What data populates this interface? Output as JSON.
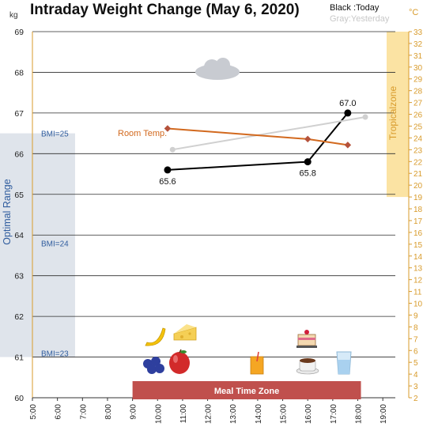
{
  "header": {
    "title": "Intraday Weight Change (May 6, 2020)",
    "legend_today": "Black :Today",
    "legend_yesterday": "Gray:Yesterday",
    "left_unit": "kg",
    "right_unit": "°C"
  },
  "chart_data": {
    "type": "line",
    "title": "Intraday Weight Change (May 6, 2020)",
    "x_ticks": [
      "5:00",
      "6:00",
      "7:00",
      "8:00",
      "9:00",
      "10:00",
      "11:00",
      "12:00",
      "13:00",
      "14:00",
      "15:00",
      "16:00",
      "17:00",
      "18:00",
      "19:00"
    ],
    "xlim": [
      5,
      19.5
    ],
    "y_left": {
      "unit": "kg",
      "ylim": [
        60,
        69
      ],
      "ticks": [
        60,
        61,
        62,
        63,
        64,
        65,
        66,
        67,
        68,
        69
      ]
    },
    "y_right": {
      "unit": "°C",
      "ylim": [
        2,
        33
      ],
      "ticks": [
        2,
        3,
        4,
        5,
        6,
        7,
        8,
        9,
        10,
        11,
        12,
        13,
        14,
        15,
        16,
        17,
        18,
        19,
        20,
        21,
        22,
        23,
        24,
        25,
        26,
        27,
        28,
        29,
        30,
        31,
        32,
        33
      ]
    },
    "series": [
      {
        "name": "Today",
        "axis": "left",
        "color": "#000000",
        "x": [
          10.4,
          16.0,
          17.6
        ],
        "y": [
          65.6,
          65.8,
          67.0
        ],
        "labels": [
          "65.6",
          "65.8",
          "67.0"
        ]
      },
      {
        "name": "Yesterday",
        "axis": "left",
        "color": "#d0d0d0",
        "x": [
          10.6,
          18.3
        ],
        "y": [
          66.1,
          66.9
        ]
      },
      {
        "name": "Room Temp.",
        "axis": "right",
        "color": "#d2691e",
        "x": [
          10.4,
          16.0,
          17.6
        ],
        "y": [
          24.8,
          23.9,
          23.4
        ]
      }
    ],
    "bands": {
      "optimal_range": {
        "label": "Optimal Range",
        "ylim": [
          61,
          66.5
        ],
        "color": "#dfe4eb"
      },
      "tropical_zone": {
        "label": "Tropicalzone",
        "ylim_right": [
          19,
          33
        ],
        "color": "#fbe3a3"
      },
      "meal_time_zone": {
        "label": "Meal Time Zone",
        "xlim": [
          9,
          18
        ],
        "color": "#c0504d"
      }
    },
    "annotations": {
      "room_temp_label": "Room Temp.",
      "bmi_lines": [
        {
          "label": "BMI=25",
          "y": 66.5
        },
        {
          "label": "BMI=24",
          "y": 63.8
        },
        {
          "label": "BMI=23",
          "y": 61.1
        }
      ]
    },
    "icons": [
      "cloud-icon",
      "banana-icon",
      "cheese-icon",
      "blueberries-icon",
      "apple-icon",
      "juice-icon",
      "cake-icon",
      "coffee-icon",
      "water-glass-icon"
    ],
    "grid": true
  }
}
